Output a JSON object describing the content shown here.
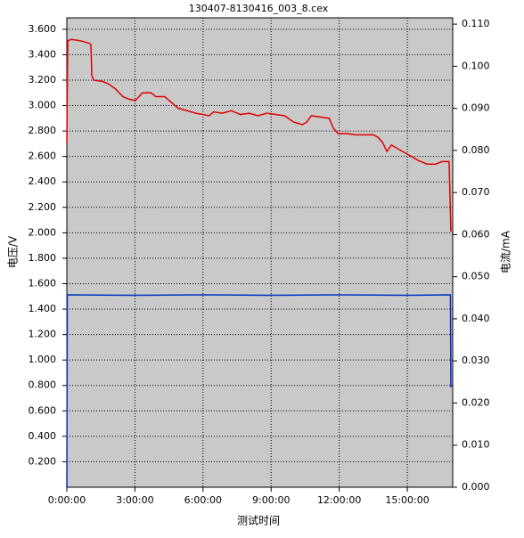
{
  "chart_data": {
    "type": "line",
    "title": "130407-8130416_003_8.cex",
    "xlabel": "测试时间",
    "ylabel": "电压/V",
    "y2label": "电流/mA",
    "xlim": [
      0,
      17
    ],
    "ylim": [
      0,
      3.69
    ],
    "y2lim": [
      0,
      0.1115
    ],
    "grid": true,
    "plot_color": "#c9c9c9",
    "xticks": [
      {
        "value": 0,
        "label": "0:00:00"
      },
      {
        "value": 3,
        "label": "3:00:00"
      },
      {
        "value": 6,
        "label": "6:00:00"
      },
      {
        "value": 9,
        "label": "9:00:00"
      },
      {
        "value": 12,
        "label": "12:00:00"
      },
      {
        "value": 15,
        "label": "15:00:00"
      }
    ],
    "yticks": [
      {
        "value": 0.2,
        "label": "0.200"
      },
      {
        "value": 0.4,
        "label": "0.400"
      },
      {
        "value": 0.6,
        "label": "0.600"
      },
      {
        "value": 0.8,
        "label": "0.800"
      },
      {
        "value": 1.0,
        "label": "1.000"
      },
      {
        "value": 1.2,
        "label": "1.200"
      },
      {
        "value": 1.4,
        "label": "1.400"
      },
      {
        "value": 1.6,
        "label": "1.600"
      },
      {
        "value": 1.8,
        "label": "1.800"
      },
      {
        "value": 2.0,
        "label": "2.000"
      },
      {
        "value": 2.2,
        "label": "2.200"
      },
      {
        "value": 2.4,
        "label": "2.400"
      },
      {
        "value": 2.6,
        "label": "2.600"
      },
      {
        "value": 2.8,
        "label": "2.800"
      },
      {
        "value": 3.0,
        "label": "3.000"
      },
      {
        "value": 3.2,
        "label": "3.200"
      },
      {
        "value": 3.4,
        "label": "3.400"
      },
      {
        "value": 3.6,
        "label": "3.600"
      }
    ],
    "y2ticks": [
      {
        "value": 0,
        "label": "0.000"
      },
      {
        "value": 0.01,
        "label": "0.010"
      },
      {
        "value": 0.02,
        "label": "0.020"
      },
      {
        "value": 0.03,
        "label": "0.030"
      },
      {
        "value": 0.04,
        "label": "0.040"
      },
      {
        "value": 0.05,
        "label": "0.050"
      },
      {
        "value": 0.06,
        "label": "0.060"
      },
      {
        "value": 0.07,
        "label": "0.070"
      },
      {
        "value": 0.08,
        "label": "0.080"
      },
      {
        "value": 0.09,
        "label": "0.090"
      },
      {
        "value": 0.1,
        "label": "0.100"
      },
      {
        "value": 0.11,
        "label": "0.110"
      }
    ],
    "series": [
      {
        "color": "#e00000",
        "axis": "y",
        "x": [
          0,
          0.04,
          0.2,
          0.59,
          0.98,
          1.06,
          1.1,
          1.18,
          1.57,
          1.84,
          2.15,
          2.47,
          2.74,
          3.02,
          3.33,
          3.72,
          3.92,
          4.31,
          4.58,
          4.9,
          5.29,
          5.68,
          5.99,
          6.27,
          6.46,
          6.85,
          7.25,
          7.64,
          8.03,
          8.42,
          8.81,
          9.2,
          9.6,
          9.99,
          10.38,
          10.57,
          10.77,
          11.16,
          11.56,
          11.75,
          11.95,
          12.34,
          12.73,
          13.12,
          13.51,
          13.71,
          13.91,
          14.1,
          14.3,
          14.69,
          15.08,
          15.47,
          15.86,
          16.25,
          16.53,
          16.84,
          16.92
        ],
        "values": [
          2.71,
          3.51,
          3.52,
          3.51,
          3.49,
          3.48,
          3.24,
          3.2,
          3.19,
          3.17,
          3.13,
          3.07,
          3.05,
          3.04,
          3.1,
          3.1,
          3.07,
          3.07,
          3.03,
          2.98,
          2.96,
          2.94,
          2.93,
          2.92,
          2.95,
          2.94,
          2.96,
          2.93,
          2.94,
          2.92,
          2.94,
          2.93,
          2.92,
          2.87,
          2.85,
          2.87,
          2.92,
          2.91,
          2.9,
          2.82,
          2.78,
          2.78,
          2.77,
          2.77,
          2.77,
          2.75,
          2.71,
          2.64,
          2.69,
          2.65,
          2.61,
          2.57,
          2.54,
          2.54,
          2.56,
          2.56,
          2.01
        ]
      },
      {
        "color": "#0030c0",
        "axis": "y2",
        "x": [
          0,
          0.02,
          3,
          6,
          9,
          12,
          15,
          16.9,
          16.92
        ],
        "values": [
          0,
          0.0457,
          0.0456,
          0.0457,
          0.0456,
          0.0457,
          0.0456,
          0.0457,
          0.0237
        ]
      }
    ]
  }
}
